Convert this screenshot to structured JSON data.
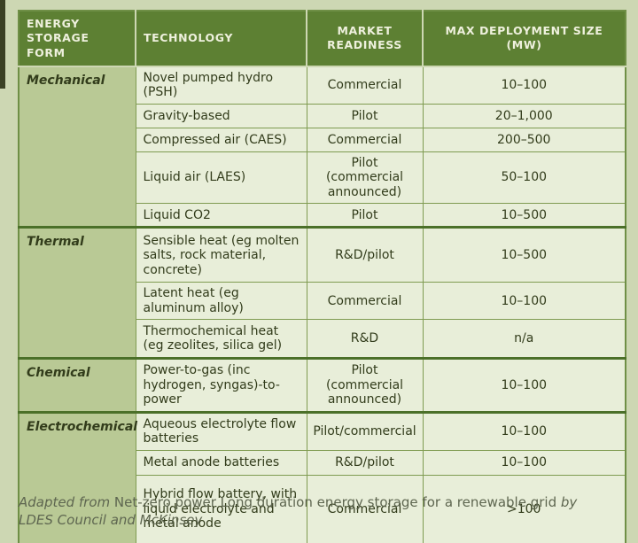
{
  "table": {
    "headers": [
      "ENERGY STORAGE FORM",
      "TECHNOLOGY",
      "MARKET READINESS",
      "MAX DEPLOYMENT SIZE (MW)"
    ],
    "sections": [
      {
        "form": "Mechanical",
        "rows": [
          {
            "technology": "Novel pumped hydro (PSH)",
            "readiness": "Commercial",
            "size": "10–100"
          },
          {
            "technology": "Gravity-based",
            "readiness": "Pilot",
            "size": "20–1,000"
          },
          {
            "technology": "Compressed air (CAES)",
            "readiness": "Commercial",
            "size": "200–500"
          },
          {
            "technology": "Liquid air (LAES)",
            "readiness": "Pilot (commercial announced)",
            "size": "50–100"
          },
          {
            "technology": "Liquid CO2",
            "readiness": "Pilot",
            "size": "10–500"
          }
        ]
      },
      {
        "form": "Thermal",
        "rows": [
          {
            "technology": "Sensible heat (eg molten salts, rock material, concrete)",
            "readiness": "R&D/pilot",
            "size": "10–500"
          },
          {
            "technology": "Latent heat (eg aluminum alloy)",
            "readiness": "Commercial",
            "size": "10–100"
          },
          {
            "technology": "Thermochemical heat (eg zeolites, silica gel)",
            "readiness": "R&D",
            "size": "n/a"
          }
        ]
      },
      {
        "form": "Chemical",
        "rows": [
          {
            "technology": "Power-to-gas (inc hydrogen, syngas)-to-power",
            "readiness": "Pilot (commercial announced)",
            "size": "10–100"
          }
        ]
      },
      {
        "form": "Electrochemical",
        "rows": [
          {
            "technology": "Aqueous electrolyte flow batteries",
            "readiness": "Pilot/commercial",
            "size": "10–100"
          },
          {
            "technology": "Metal anode batteries",
            "readiness": "R&D/pilot",
            "size": "10–100"
          },
          {
            "technology": "Hybrid flow battery, with liquid electrolyte and metal anode",
            "readiness": "Commercial",
            "size": ">100"
          }
        ]
      }
    ]
  },
  "caption": {
    "lead_in": "Adapted from",
    "title": "Net-zero power Long duration energy storage for a renewable grid",
    "byline": "by LDES Council and McKinsey"
  },
  "colors": {
    "page_background": "#cdd7b3",
    "header_green": "#5d8033",
    "category_cell": "#b9c995",
    "body_cell": "#e8eed9",
    "thin_line": "#7f9b51",
    "section_line": "#4b7029",
    "body_text": "#323c1b",
    "header_text": "#eef0dd",
    "caption_text": "#5e6650"
  },
  "chart_data": {
    "type": "table",
    "title": "",
    "columns": [
      "ENERGY STORAGE FORM",
      "TECHNOLOGY",
      "MARKET READINESS",
      "MAX DEPLOYMENT SIZE (MW)"
    ],
    "rows": [
      [
        "Mechanical",
        "Novel pumped hydro (PSH)",
        "Commercial",
        "10–100"
      ],
      [
        "Mechanical",
        "Gravity-based",
        "Pilot",
        "20–1,000"
      ],
      [
        "Mechanical",
        "Compressed air (CAES)",
        "Commercial",
        "200–500"
      ],
      [
        "Mechanical",
        "Liquid air (LAES)",
        "Pilot (commercial announced)",
        "50–100"
      ],
      [
        "Mechanical",
        "Liquid CO2",
        "Pilot",
        "10–500"
      ],
      [
        "Thermal",
        "Sensible heat (eg molten salts, rock material, concrete)",
        "R&D/pilot",
        "10–500"
      ],
      [
        "Thermal",
        "Latent heat (eg aluminum alloy)",
        "Commercial",
        "10–100"
      ],
      [
        "Thermal",
        "Thermochemical heat (eg zeolites, silica gel)",
        "R&D",
        "n/a"
      ],
      [
        "Chemical",
        "Power-to-gas (inc hydrogen, syngas)-to-power",
        "Pilot (commercial announced)",
        "10–100"
      ],
      [
        "Electrochemical",
        "Aqueous electrolyte flow batteries",
        "Pilot/commercial",
        "10–100"
      ],
      [
        "Electrochemical",
        "Metal anode batteries",
        "R&D/pilot",
        "10–100"
      ],
      [
        "Electrochemical",
        "Hybrid flow battery, with liquid electrolyte and metal anode",
        "Commercial",
        ">100"
      ]
    ],
    "source_note": "Adapted from Net-zero power Long duration energy storage for a renewable grid by LDES Council and McKinsey"
  }
}
